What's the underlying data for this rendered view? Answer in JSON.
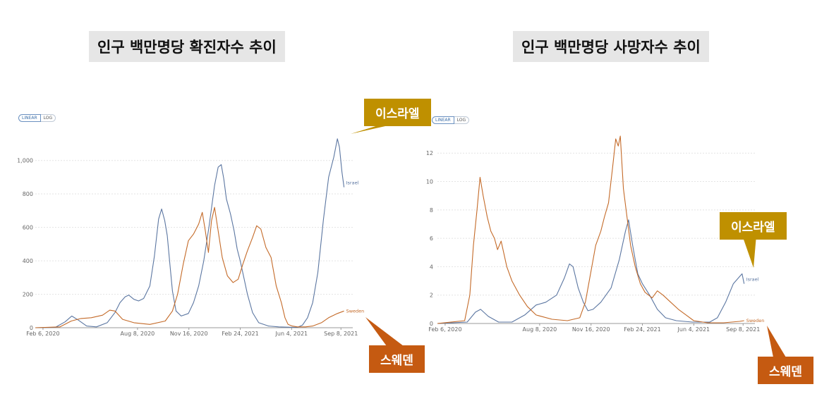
{
  "colors": {
    "israel": "#5b76a1",
    "sweden": "#c46a28",
    "israel_callout": "#bf9000",
    "sweden_callout": "#c55a11",
    "grid": "#e4e4e4"
  },
  "chart_data": [
    {
      "type": "line",
      "title": "인구 백만명당 확진자수 추이",
      "toggle": {
        "linear": "LINEAR",
        "log": "LOG",
        "selected": "linear"
      },
      "x_tick_labels": [
        "Feb 6, 2020",
        "Aug 8, 2020",
        "Nov 16, 2020",
        "Feb 24, 2021",
        "Jun 4, 2021",
        "Sep 8, 2021"
      ],
      "x_tick_dates": [
        "2020-02-06",
        "2020-08-08",
        "2020-11-16",
        "2021-02-24",
        "2021-06-04",
        "2021-09-08"
      ],
      "xlim": [
        "2020-01-22",
        "2021-10-01"
      ],
      "y_ticks": [
        0,
        200,
        400,
        600,
        800,
        1000
      ],
      "y_tick_labels": [
        "0",
        "200",
        "400",
        "600",
        "800",
        "1,000"
      ],
      "ylim": [
        0,
        1180
      ],
      "grid": true,
      "series": [
        {
          "name": "Israel",
          "key": "israel",
          "points": [
            [
              "2020-01-22",
              0
            ],
            [
              "2020-03-01",
              2
            ],
            [
              "2020-03-20",
              35
            ],
            [
              "2020-04-02",
              70
            ],
            [
              "2020-04-15",
              45
            ],
            [
              "2020-05-01",
              10
            ],
            [
              "2020-05-20",
              5
            ],
            [
              "2020-06-10",
              30
            ],
            [
              "2020-06-25",
              90
            ],
            [
              "2020-07-05",
              150
            ],
            [
              "2020-07-15",
              185
            ],
            [
              "2020-07-22",
              195
            ],
            [
              "2020-08-01",
              170
            ],
            [
              "2020-08-10",
              160
            ],
            [
              "2020-08-20",
              175
            ],
            [
              "2020-09-01",
              250
            ],
            [
              "2020-09-10",
              430
            ],
            [
              "2020-09-18",
              650
            ],
            [
              "2020-09-24",
              710
            ],
            [
              "2020-09-30",
              640
            ],
            [
              "2020-10-05",
              550
            ],
            [
              "2020-10-10",
              380
            ],
            [
              "2020-10-15",
              220
            ],
            [
              "2020-10-22",
              100
            ],
            [
              "2020-11-01",
              70
            ],
            [
              "2020-11-15",
              85
            ],
            [
              "2020-11-25",
              150
            ],
            [
              "2020-12-05",
              250
            ],
            [
              "2020-12-15",
              400
            ],
            [
              "2020-12-25",
              600
            ],
            [
              "2021-01-05",
              850
            ],
            [
              "2021-01-12",
              960
            ],
            [
              "2021-01-18",
              975
            ],
            [
              "2021-01-23",
              890
            ],
            [
              "2021-01-28",
              770
            ],
            [
              "2021-02-05",
              680
            ],
            [
              "2021-02-12",
              580
            ],
            [
              "2021-02-18",
              470
            ],
            [
              "2021-02-24",
              400
            ],
            [
              "2021-03-03",
              300
            ],
            [
              "2021-03-10",
              200
            ],
            [
              "2021-03-20",
              90
            ],
            [
              "2021-04-01",
              30
            ],
            [
              "2021-04-20",
              10
            ],
            [
              "2021-05-10",
              5
            ],
            [
              "2021-06-01",
              3
            ],
            [
              "2021-06-15",
              2
            ],
            [
              "2021-06-25",
              15
            ],
            [
              "2021-07-05",
              60
            ],
            [
              "2021-07-15",
              150
            ],
            [
              "2021-07-25",
              330
            ],
            [
              "2021-08-05",
              650
            ],
            [
              "2021-08-15",
              900
            ],
            [
              "2021-08-25",
              1020
            ],
            [
              "2021-09-01",
              1130
            ],
            [
              "2021-09-05",
              1080
            ],
            [
              "2021-09-10",
              930
            ],
            [
              "2021-09-14",
              840
            ]
          ],
          "end_label": "Israel"
        },
        {
          "name": "Sweden",
          "key": "sweden",
          "points": [
            [
              "2020-01-22",
              0
            ],
            [
              "2020-03-10",
              5
            ],
            [
              "2020-04-01",
              40
            ],
            [
              "2020-04-20",
              55
            ],
            [
              "2020-05-10",
              60
            ],
            [
              "2020-06-01",
              75
            ],
            [
              "2020-06-15",
              105
            ],
            [
              "2020-06-25",
              100
            ],
            [
              "2020-07-10",
              50
            ],
            [
              "2020-08-01",
              30
            ],
            [
              "2020-09-01",
              20
            ],
            [
              "2020-10-01",
              40
            ],
            [
              "2020-10-15",
              100
            ],
            [
              "2020-10-25",
              200
            ],
            [
              "2020-11-05",
              380
            ],
            [
              "2020-11-15",
              520
            ],
            [
              "2020-11-25",
              560
            ],
            [
              "2020-12-05",
              620
            ],
            [
              "2020-12-12",
              690
            ],
            [
              "2020-12-18",
              580
            ],
            [
              "2020-12-24",
              450
            ],
            [
              "2020-12-30",
              640
            ],
            [
              "2021-01-05",
              720
            ],
            [
              "2021-01-12",
              580
            ],
            [
              "2021-01-20",
              420
            ],
            [
              "2021-01-30",
              310
            ],
            [
              "2021-02-10",
              270
            ],
            [
              "2021-02-20",
              290
            ],
            [
              "2021-03-01",
              380
            ],
            [
              "2021-03-10",
              460
            ],
            [
              "2021-03-20",
              540
            ],
            [
              "2021-03-28",
              610
            ],
            [
              "2021-04-05",
              590
            ],
            [
              "2021-04-15",
              480
            ],
            [
              "2021-04-25",
              420
            ],
            [
              "2021-05-05",
              250
            ],
            [
              "2021-05-15",
              150
            ],
            [
              "2021-05-22",
              60
            ],
            [
              "2021-05-28",
              20
            ],
            [
              "2021-06-05",
              10
            ],
            [
              "2021-06-15",
              5
            ],
            [
              "2021-07-01",
              5
            ],
            [
              "2021-07-15",
              10
            ],
            [
              "2021-08-01",
              30
            ],
            [
              "2021-08-15",
              60
            ],
            [
              "2021-09-01",
              85
            ],
            [
              "2021-09-14",
              100
            ]
          ],
          "end_label": "Sweden"
        }
      ]
    },
    {
      "type": "line",
      "title": "인구 백만명당 사망자수 추이",
      "toggle": {
        "linear": "LINEAR",
        "log": "LOG",
        "selected": "linear"
      },
      "x_tick_labels": [
        "Feb 6, 2020",
        "Aug 8, 2020",
        "Nov 16, 2020",
        "Feb 24, 2021",
        "Jun 4, 2021",
        "Sep 8, 2021"
      ],
      "x_tick_dates": [
        "2020-02-06",
        "2020-08-08",
        "2020-11-16",
        "2021-02-24",
        "2021-06-04",
        "2021-09-08"
      ],
      "xlim": [
        "2020-01-22",
        "2021-10-01"
      ],
      "y_ticks": [
        0,
        2,
        4,
        6,
        8,
        10,
        12
      ],
      "y_tick_labels": [
        "0",
        "2",
        "4",
        "6",
        "8",
        "10",
        "12"
      ],
      "ylim": [
        0,
        13.6
      ],
      "grid": true,
      "series": [
        {
          "name": "Israel",
          "key": "israel",
          "points": [
            [
              "2020-01-22",
              0
            ],
            [
              "2020-03-20",
              0.1
            ],
            [
              "2020-04-05",
              0.8
            ],
            [
              "2020-04-15",
              1.0
            ],
            [
              "2020-04-30",
              0.5
            ],
            [
              "2020-05-20",
              0.1
            ],
            [
              "2020-06-15",
              0.1
            ],
            [
              "2020-07-10",
              0.6
            ],
            [
              "2020-08-01",
              1.3
            ],
            [
              "2020-08-20",
              1.5
            ],
            [
              "2020-09-10",
              2.0
            ],
            [
              "2020-09-25",
              3.2
            ],
            [
              "2020-10-05",
              4.2
            ],
            [
              "2020-10-12",
              4.0
            ],
            [
              "2020-10-22",
              2.5
            ],
            [
              "2020-11-01",
              1.5
            ],
            [
              "2020-11-10",
              0.9
            ],
            [
              "2020-11-20",
              1.0
            ],
            [
              "2020-12-05",
              1.5
            ],
            [
              "2020-12-25",
              2.5
            ],
            [
              "2021-01-10",
              4.5
            ],
            [
              "2021-01-22",
              6.5
            ],
            [
              "2021-01-28",
              7.3
            ],
            [
              "2021-02-05",
              5.5
            ],
            [
              "2021-02-15",
              3.5
            ],
            [
              "2021-02-24",
              2.8
            ],
            [
              "2021-03-10",
              2.0
            ],
            [
              "2021-03-25",
              1.0
            ],
            [
              "2021-04-10",
              0.4
            ],
            [
              "2021-05-01",
              0.2
            ],
            [
              "2021-06-01",
              0.1
            ],
            [
              "2021-07-05",
              0.1
            ],
            [
              "2021-07-20",
              0.4
            ],
            [
              "2021-08-05",
              1.5
            ],
            [
              "2021-08-20",
              2.8
            ],
            [
              "2021-09-01",
              3.3
            ],
            [
              "2021-09-06",
              3.5
            ],
            [
              "2021-09-10",
              2.8
            ]
          ],
          "end_label": "Israel"
        },
        {
          "name": "Sweden",
          "key": "sweden",
          "points": [
            [
              "2020-01-22",
              0
            ],
            [
              "2020-03-15",
              0.2
            ],
            [
              "2020-03-25",
              2.0
            ],
            [
              "2020-04-01",
              5.5
            ],
            [
              "2020-04-08",
              8.0
            ],
            [
              "2020-04-14",
              10.3
            ],
            [
              "2020-04-20",
              9.0
            ],
            [
              "2020-04-28",
              7.5
            ],
            [
              "2020-05-05",
              6.5
            ],
            [
              "2020-05-12",
              6.0
            ],
            [
              "2020-05-18",
              5.2
            ],
            [
              "2020-05-25",
              5.8
            ],
            [
              "2020-06-05",
              4.0
            ],
            [
              "2020-06-15",
              3.0
            ],
            [
              "2020-06-30",
              2.0
            ],
            [
              "2020-07-15",
              1.2
            ],
            [
              "2020-08-01",
              0.6
            ],
            [
              "2020-09-01",
              0.3
            ],
            [
              "2020-10-01",
              0.2
            ],
            [
              "2020-10-25",
              0.4
            ],
            [
              "2020-11-05",
              1.5
            ],
            [
              "2020-11-15",
              3.5
            ],
            [
              "2020-11-25",
              5.5
            ],
            [
              "2020-12-05",
              6.5
            ],
            [
              "2020-12-12",
              7.5
            ],
            [
              "2020-12-20",
              8.5
            ],
            [
              "2020-12-28",
              11.0
            ],
            [
              "2021-01-03",
              13.0
            ],
            [
              "2021-01-08",
              12.5
            ],
            [
              "2021-01-12",
              13.2
            ],
            [
              "2021-01-18",
              9.5
            ],
            [
              "2021-01-25",
              7.5
            ],
            [
              "2021-02-01",
              5.5
            ],
            [
              "2021-02-10",
              4.0
            ],
            [
              "2021-02-20",
              2.8
            ],
            [
              "2021-03-01",
              2.2
            ],
            [
              "2021-03-15",
              1.8
            ],
            [
              "2021-03-25",
              2.3
            ],
            [
              "2021-04-05",
              2.0
            ],
            [
              "2021-04-20",
              1.5
            ],
            [
              "2021-05-05",
              1.0
            ],
            [
              "2021-05-20",
              0.6
            ],
            [
              "2021-06-04",
              0.2
            ],
            [
              "2021-07-01",
              0.05
            ],
            [
              "2021-08-01",
              0.05
            ],
            [
              "2021-09-01",
              0.15
            ],
            [
              "2021-09-10",
              0.2
            ]
          ],
          "end_label": "Sweden"
        }
      ]
    }
  ],
  "callouts": {
    "left_israel": "이스라엘",
    "left_sweden": "스웨덴",
    "right_israel": "이스라엘",
    "right_sweden": "스웨덴"
  }
}
